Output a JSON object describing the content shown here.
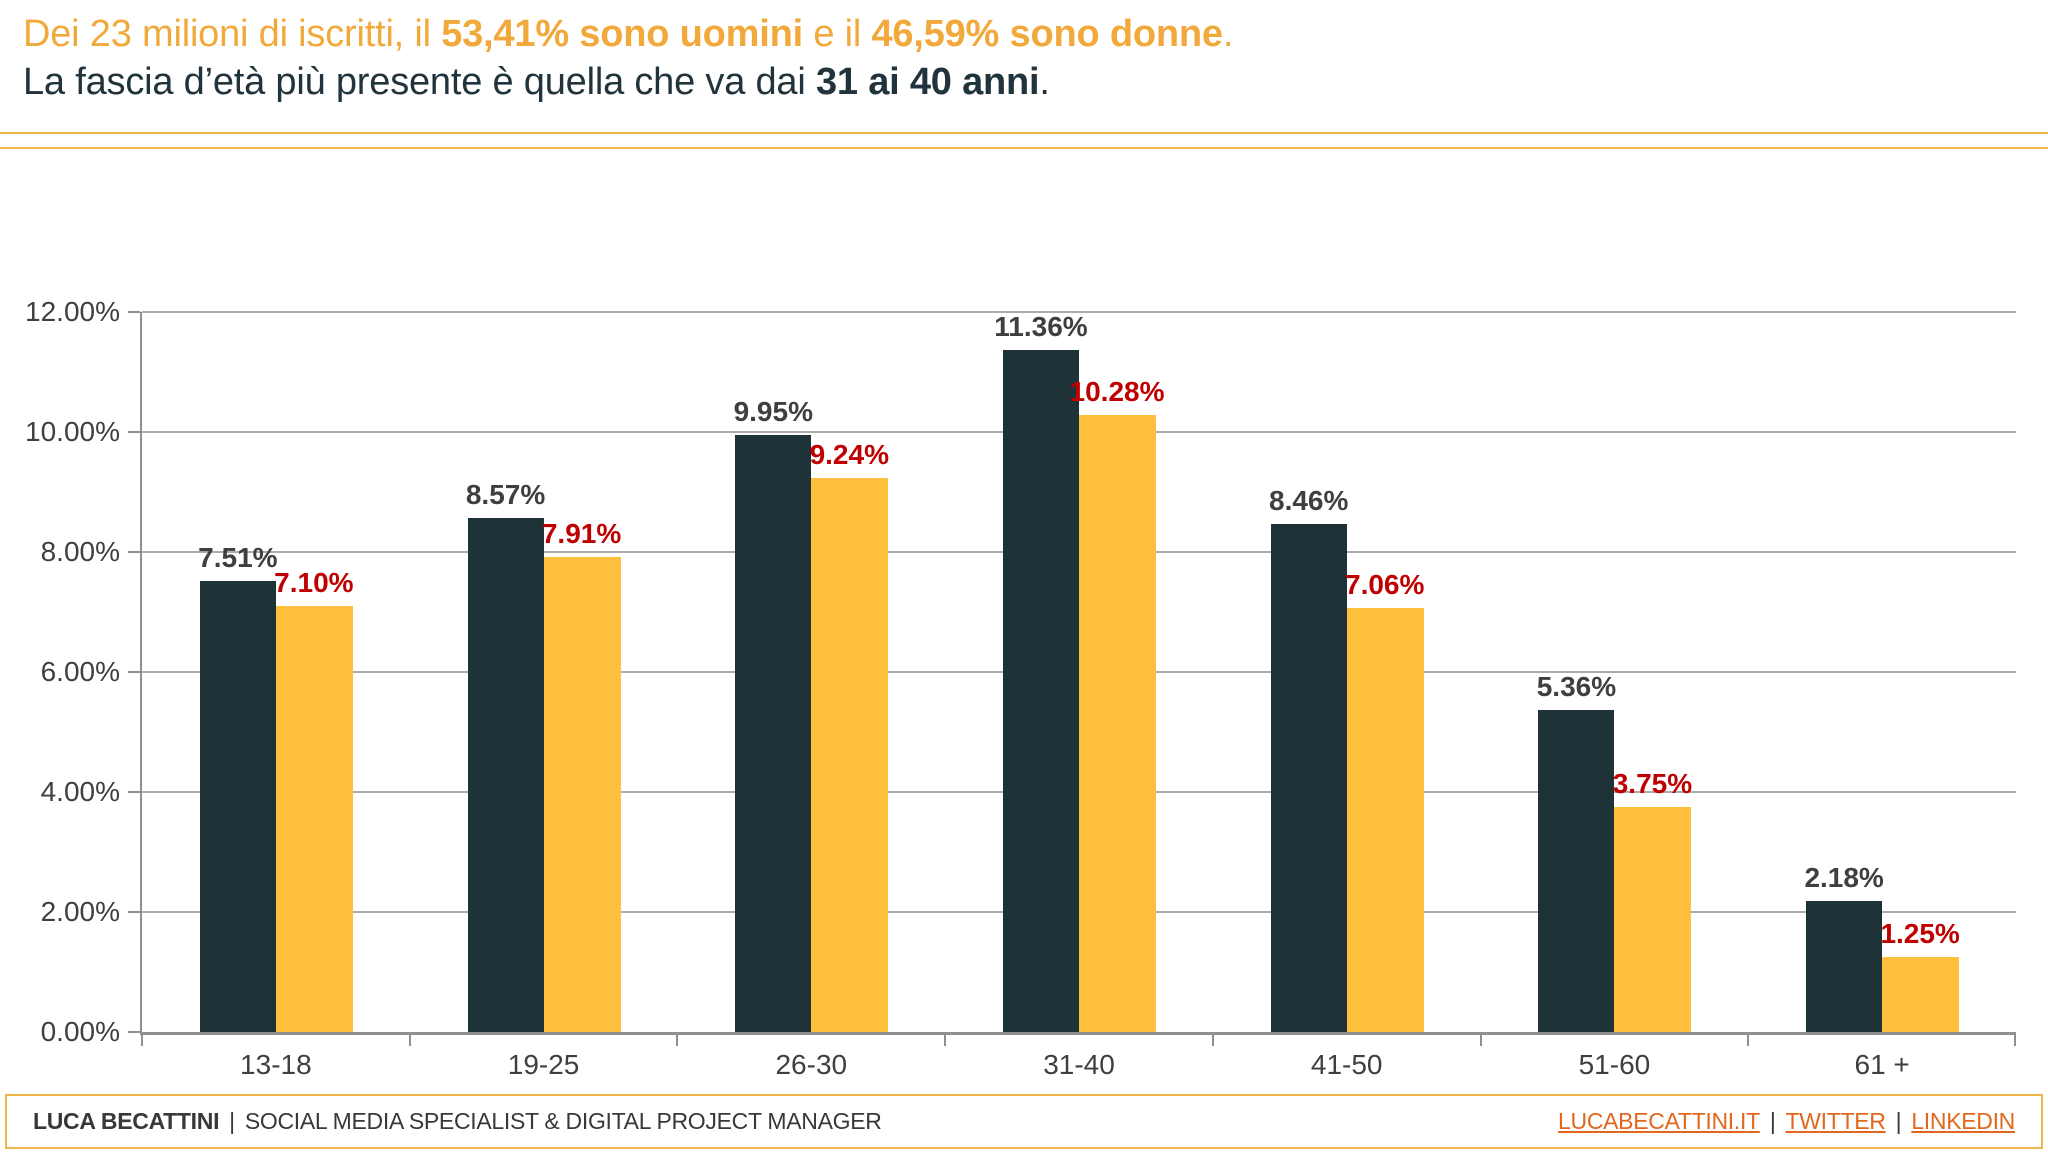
{
  "header": {
    "line1": {
      "t1": "Dei 23 milioni di iscritti, il ",
      "b1": "53,41% sono uomini",
      "t2": " e il ",
      "b2": "46,59% sono donne",
      "t3": "."
    },
    "line2": {
      "t1": "La fascia d’età più presente è quella che va dai ",
      "b1": "31 ai 40 anni",
      "t2": "."
    }
  },
  "colors": {
    "accent_text": "#F2A93C",
    "dark_text": "#21333C",
    "accent_line": "#ECB544",
    "men_bar": "#1E3338",
    "women_bar": "#FFC13D",
    "gray_text": "#3F3F3F",
    "women_label": "#C00000",
    "grid": "#ACACAC",
    "axis": "#909090",
    "link": "#E2671C",
    "footer_text": "#383838",
    "footer_border": "#EDB54A"
  },
  "chart_data": {
    "type": "bar",
    "title": "",
    "xlabel": "",
    "ylabel": "",
    "categories": [
      "13-18",
      "19-25",
      "26-30",
      "31-40",
      "41-50",
      "51-60",
      "61 +"
    ],
    "series": [
      {
        "name": "uomini",
        "values": [
          7.51,
          8.57,
          9.95,
          11.36,
          8.46,
          5.36,
          2.18
        ],
        "labels": [
          "7.51%",
          "8.57%",
          "9.95%",
          "11.36%",
          "8.46%",
          "5.36%",
          "2.18%"
        ]
      },
      {
        "name": "donne",
        "values": [
          7.1,
          7.91,
          9.24,
          10.28,
          7.06,
          3.75,
          1.25
        ],
        "labels": [
          "7.10%",
          "7.91%",
          "9.24%",
          "10.28%",
          "7.06%",
          "3.75%",
          "1.25%"
        ]
      }
    ],
    "y_ticks": [
      "12.00%",
      "10.00%",
      "8.00%",
      "6.00%",
      "4.00%",
      "2.00%",
      "0.00%"
    ],
    "ylim": [
      0,
      12
    ],
    "grid": "horizontal",
    "legend": "none"
  },
  "footer": {
    "name": "LUCA BECATTINI",
    "separator": "|",
    "role": "SOCIAL MEDIA SPECIALIST & DIGITAL PROJECT MANAGER",
    "links": [
      {
        "label": "LUCABECATTINI.IT"
      },
      {
        "label": "TWITTER"
      },
      {
        "label": "LINKEDIN"
      }
    ]
  }
}
